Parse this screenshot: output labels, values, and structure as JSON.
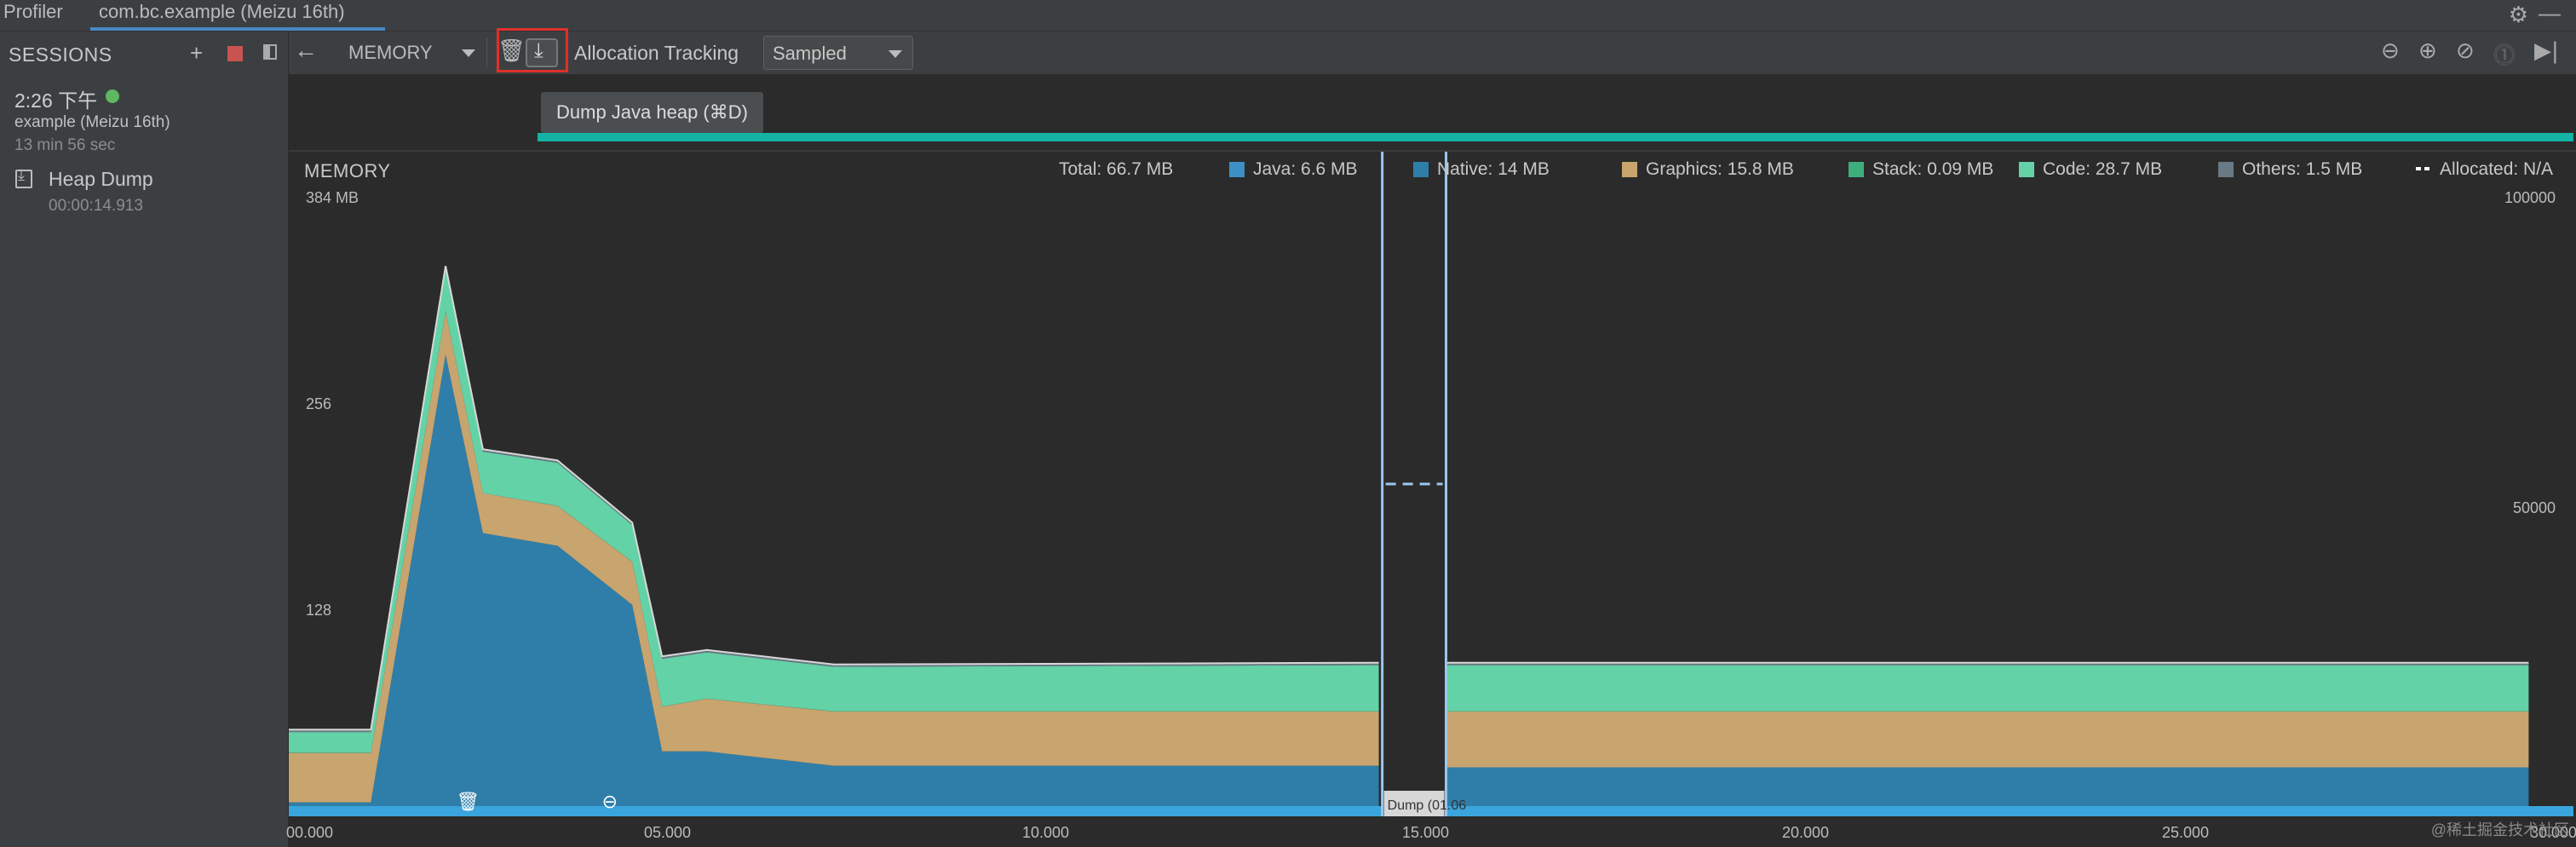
{
  "window": {
    "tabs": [
      {
        "label": "Profiler"
      },
      {
        "label": "com.bc.example (Meizu 16th)"
      }
    ],
    "settings_icon": "gear-icon",
    "minimize_icon": "minimize-icon"
  },
  "sidebar": {
    "header": "SESSIONS",
    "actions": [
      "add-icon",
      "stop-icon",
      "panel-toggle-icon"
    ],
    "session": {
      "time": "2:26 下午",
      "status_color": "#5fb85f",
      "device": "example (Meizu 16th)",
      "duration": "13 min 56 sec"
    },
    "artifact": {
      "label": "Heap Dump",
      "time": "00:00:14.913",
      "icon": "heap-dump-icon"
    }
  },
  "toolbar": {
    "back_icon": "back-arrow-icon",
    "profiler": "MEMORY",
    "gc_icon": "trash-icon",
    "dump_icon": "dump-heap-icon",
    "alloc_label": "Allocation Tracking",
    "alloc_value": "Sampled",
    "right_icons": [
      "zoom-out-icon",
      "zoom-in-icon",
      "reset-zoom-icon",
      "pause-icon",
      "go-live-icon"
    ],
    "highlight_color": "#e0302a"
  },
  "tooltip": {
    "text": "Dump Java heap (⌘D)"
  },
  "memory": {
    "title": "MEMORY",
    "legend": [
      {
        "label": "Total: 66.7 MB",
        "color": ""
      },
      {
        "label": "Java: 6.6 MB",
        "color": "#3d8fc6"
      },
      {
        "label": "Native: 14 MB",
        "color": "#2f7ea9"
      },
      {
        "label": "Graphics: 15.8 MB",
        "color": "#c8a46e"
      },
      {
        "label": "Stack: 0.09 MB",
        "color": "#3fae7d"
      },
      {
        "label": "Code: 28.7 MB",
        "color": "#63d2a6"
      },
      {
        "label": "Others: 1.5 MB",
        "color": "#6a7a85"
      },
      {
        "label": "Allocated: N/A",
        "color": "#ffffff"
      }
    ],
    "y_left": [
      "384 MB",
      "256",
      "128"
    ],
    "y_right": [
      "100000",
      "50000"
    ],
    "x_ticks": [
      "00.000",
      "05.000",
      "10.000",
      "15.000",
      "20.000",
      "25.000",
      "30.000"
    ],
    "dump_label": "Dump (01.06",
    "watermark": "@稀土掘金技术社区"
  },
  "chart_data": {
    "type": "area",
    "title": "MEMORY",
    "xlabel": "",
    "ylabel": "",
    "ylim": [
      0,
      384
    ],
    "x": [
      0,
      1.1,
      2.1,
      2.6,
      3.6,
      4.6,
      5.0,
      5.6,
      7.3,
      14.5,
      14.6,
      15.5,
      30
    ],
    "series": [
      {
        "name": "Java",
        "values": [
          0.5,
          0.5,
          0.5,
          0.5,
          0.5,
          0.5,
          0.5,
          0.5,
          0.5,
          0.5,
          0.5,
          0.5,
          0.5
        ]
      },
      {
        "name": "Native",
        "values": [
          4,
          4,
          285,
          173,
          165,
          128,
          36,
          36,
          27,
          27,
          27,
          26,
          26
        ]
      },
      {
        "name": "Graphics",
        "values": [
          31,
          31,
          27,
          25,
          25,
          27,
          28,
          33,
          34,
          34,
          34,
          35,
          35
        ]
      },
      {
        "name": "Stack",
        "values": [
          0.1,
          0.1,
          0.1,
          0.1,
          0.1,
          0.1,
          0.1,
          0.1,
          0.1,
          0.1,
          0.1,
          0.1,
          0.1
        ]
      },
      {
        "name": "Code",
        "values": [
          13,
          13,
          27,
          26,
          27,
          23,
          30,
          29,
          28,
          29,
          29,
          29,
          29
        ]
      },
      {
        "name": "Others",
        "values": [
          1.5,
          1.5,
          1.5,
          1.5,
          1.5,
          1.5,
          1.5,
          1.5,
          1.5,
          1.5,
          1.5,
          1.5,
          1.5
        ]
      }
    ],
    "gap_range": [
      14.6,
      15.5
    ],
    "grid": false
  }
}
